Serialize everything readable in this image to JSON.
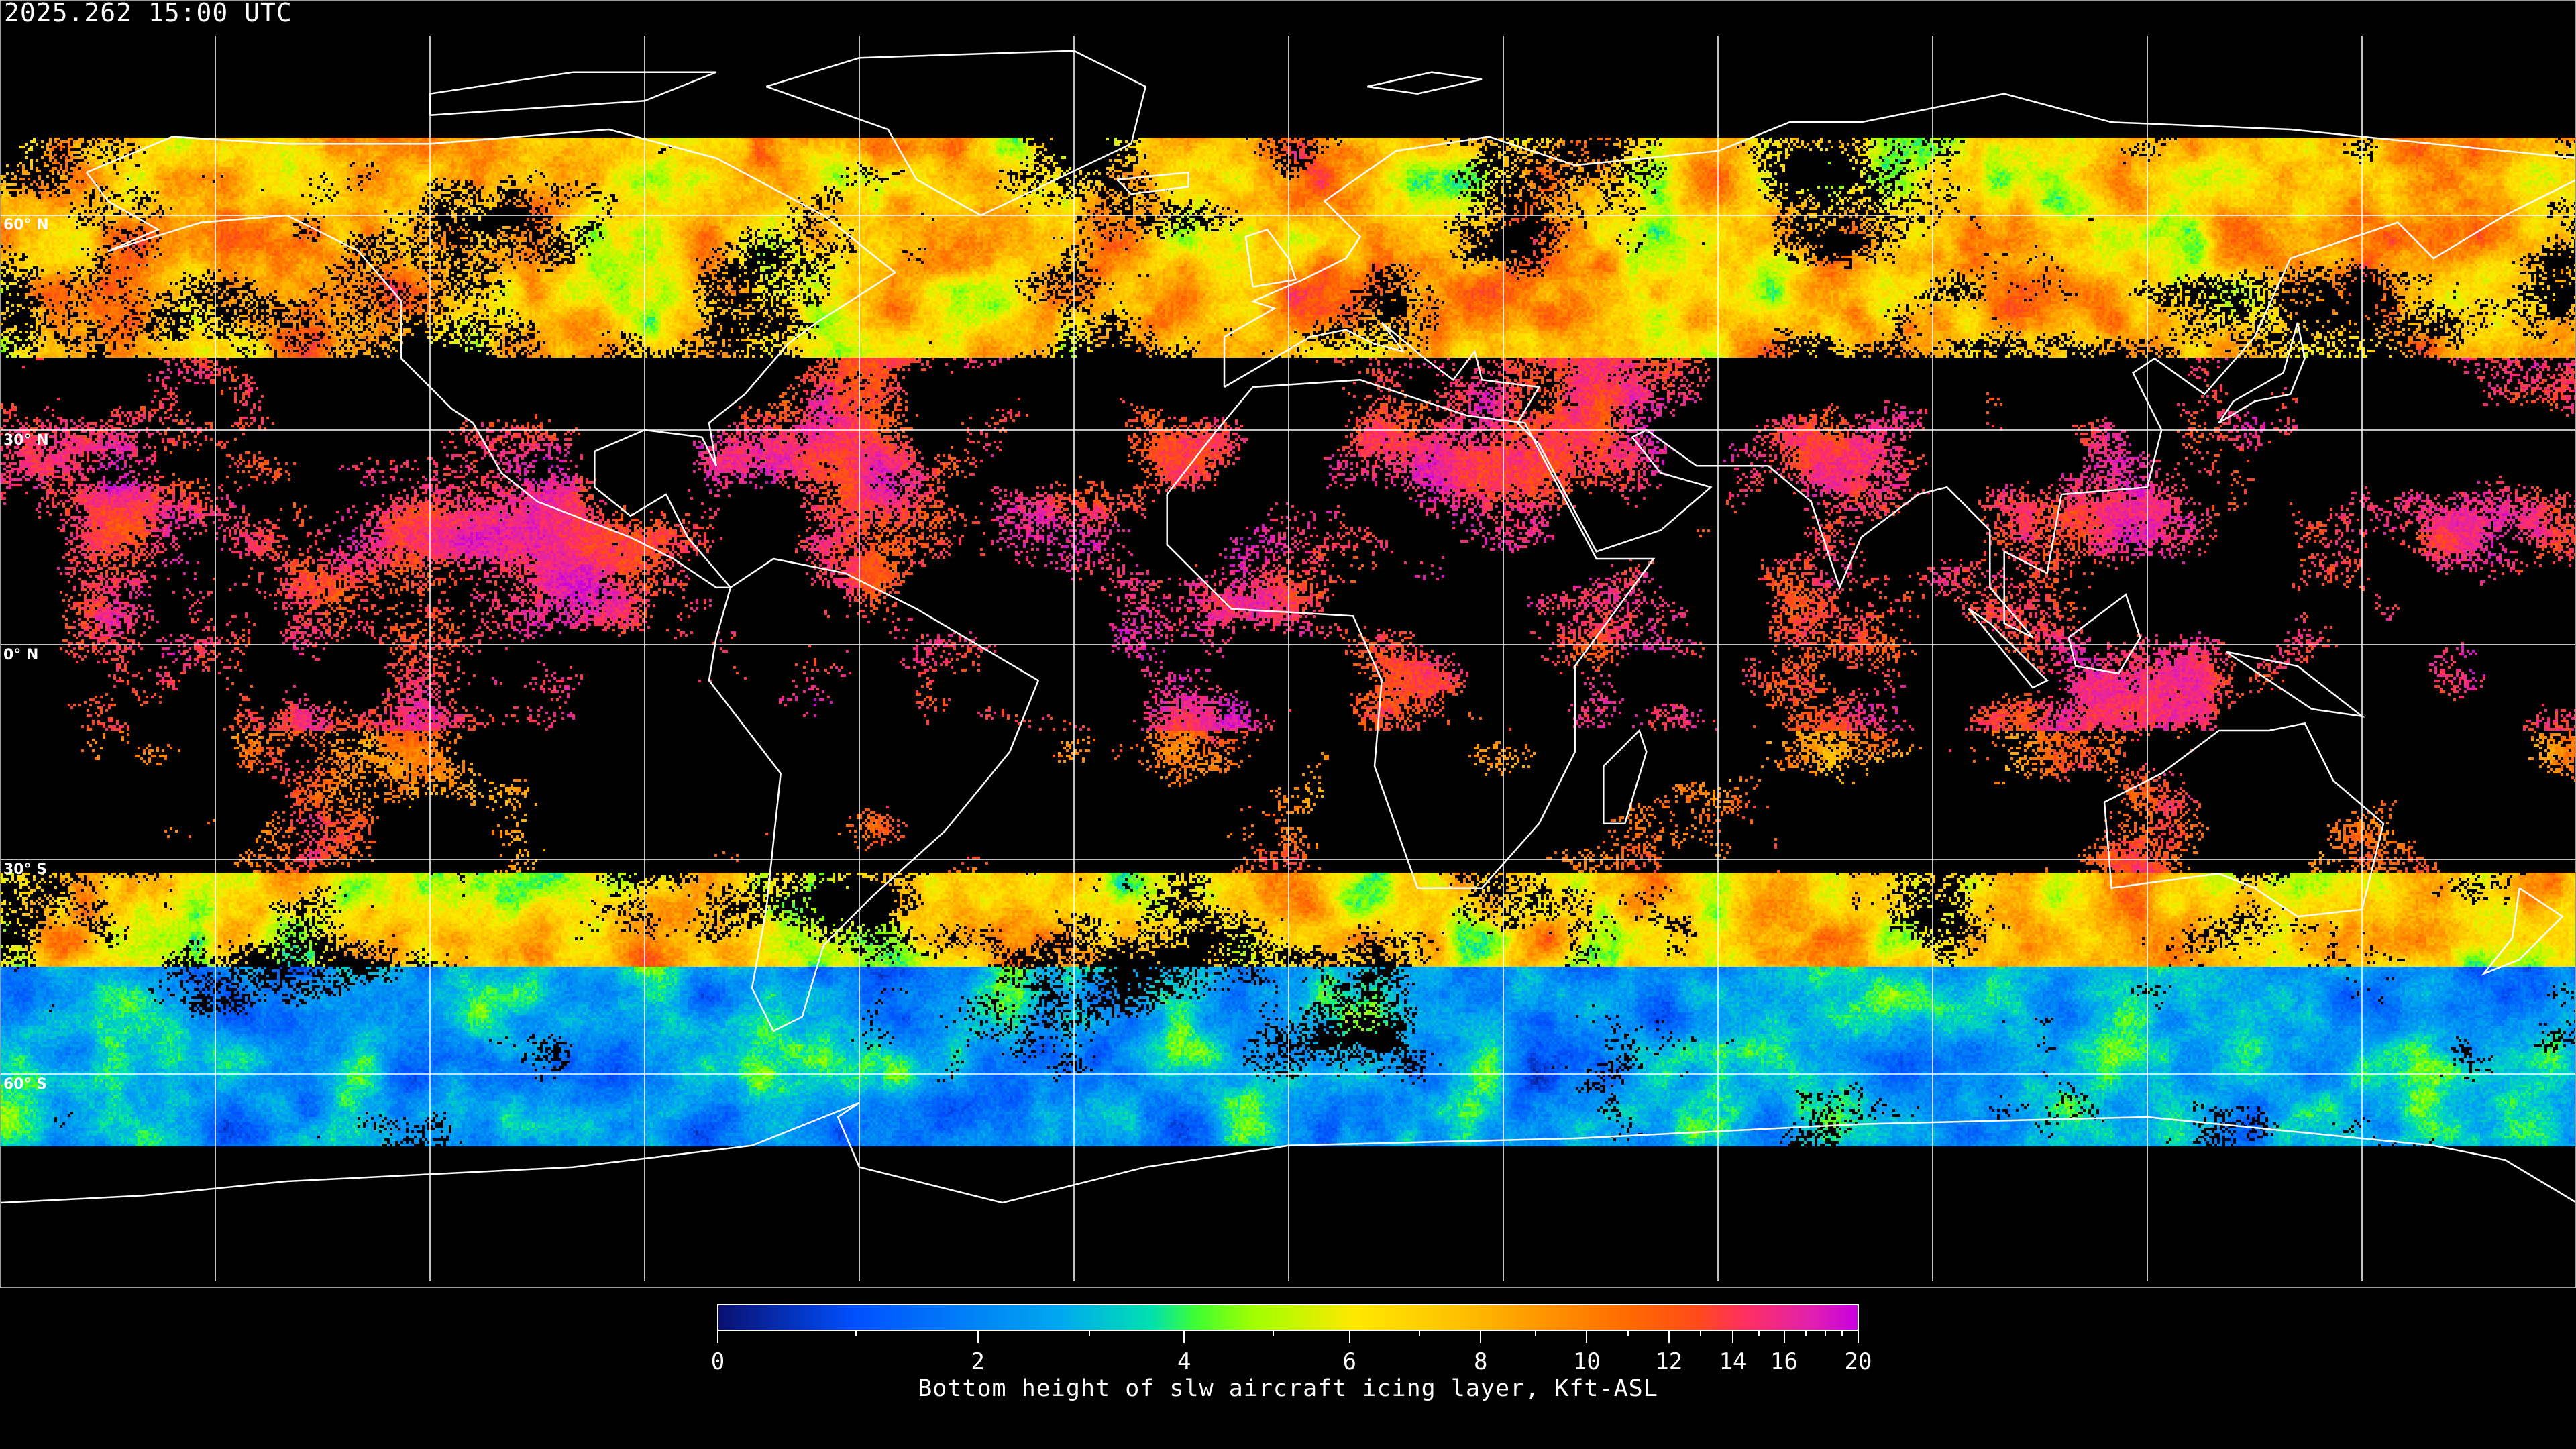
{
  "header": {
    "timestamp": "2025.262 15:00 UTC"
  },
  "map": {
    "projection": "equirectangular",
    "lat_labels": [
      {
        "lat": 60,
        "label": "60° N"
      },
      {
        "lat": 30,
        "label": "30° N"
      },
      {
        "lat": 0,
        "label": "0° N"
      },
      {
        "lat": -30,
        "label": "30° S"
      },
      {
        "lat": -60,
        "label": "60° S"
      }
    ],
    "gridline_color": "#ffffff",
    "coastline_color": "#ffffff"
  },
  "colorbar": {
    "title": "Bottom height of slw aircraft icing layer, Kft-ASL",
    "range": [
      0,
      20
    ],
    "major_ticks": [
      "0",
      "2",
      "4",
      "6",
      "8",
      "10",
      "12",
      "14",
      "16",
      "20"
    ],
    "minor_ticks": [
      1,
      3,
      5,
      7,
      9,
      11,
      13,
      15,
      17,
      18,
      19
    ],
    "colormap": [
      "#0a1070",
      "#0050ff",
      "#00a8f0",
      "#00e0b0",
      "#40ff30",
      "#a0ff00",
      "#ffe800",
      "#ffc000",
      "#ff9800",
      "#ff6a00",
      "#ff4a1a",
      "#ff3060",
      "#e020b0",
      "#c800e0"
    ]
  }
}
